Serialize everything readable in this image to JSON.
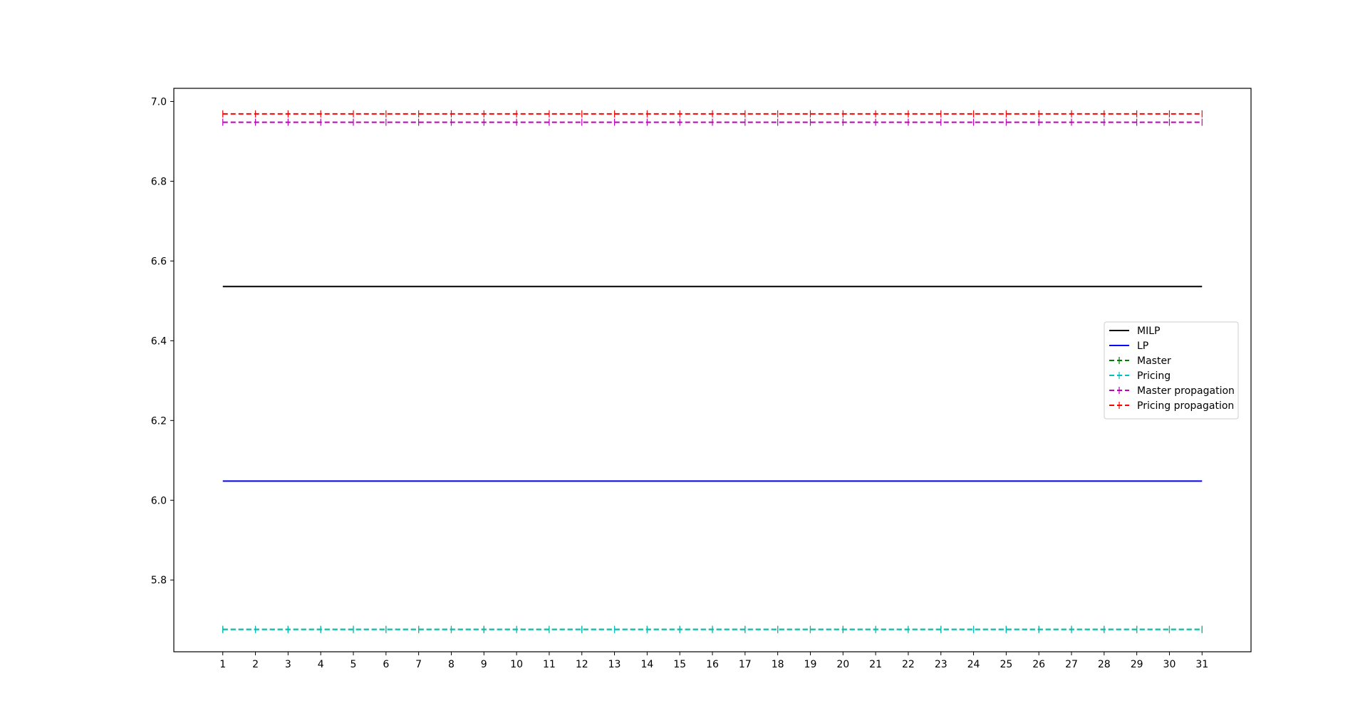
{
  "chart_data": {
    "type": "line",
    "title": "",
    "xlabel": "",
    "ylabel": "",
    "x": [
      1,
      2,
      3,
      4,
      5,
      6,
      7,
      8,
      9,
      10,
      11,
      12,
      13,
      14,
      15,
      16,
      17,
      18,
      19,
      20,
      21,
      22,
      23,
      24,
      25,
      26,
      27,
      28,
      29,
      30,
      31
    ],
    "xlim": [
      -0.5,
      32.5
    ],
    "ylim": [
      5.62,
      7.033
    ],
    "yticks": [
      5.8,
      6.0,
      6.2,
      6.4,
      6.6,
      6.8,
      7.0
    ],
    "ytick_labels": [
      "5.8",
      "6.0",
      "6.2",
      "6.4",
      "6.6",
      "6.8",
      "7.0"
    ],
    "xtick_labels": [
      "1",
      "2",
      "3",
      "4",
      "5",
      "6",
      "7",
      "8",
      "9",
      "10",
      "11",
      "12",
      "13",
      "14",
      "15",
      "16",
      "17",
      "18",
      "19",
      "20",
      "21",
      "22",
      "23",
      "24",
      "25",
      "26",
      "27",
      "28",
      "29",
      "30",
      "31"
    ],
    "grid": false,
    "legend_position": "center-right",
    "series": [
      {
        "name": "MILP",
        "color": "#000000",
        "style": "solid",
        "errorbars": false,
        "values": [
          6.536,
          6.536,
          6.536,
          6.536,
          6.536,
          6.536,
          6.536,
          6.536,
          6.536,
          6.536,
          6.536,
          6.536,
          6.536,
          6.536,
          6.536,
          6.536,
          6.536,
          6.536,
          6.536,
          6.536,
          6.536,
          6.536,
          6.536,
          6.536,
          6.536,
          6.536,
          6.536,
          6.536,
          6.536,
          6.536,
          6.536
        ]
      },
      {
        "name": "LP",
        "color": "#0000ff",
        "style": "solid",
        "errorbars": false,
        "values": [
          6.048,
          6.048,
          6.048,
          6.048,
          6.048,
          6.048,
          6.048,
          6.048,
          6.048,
          6.048,
          6.048,
          6.048,
          6.048,
          6.048,
          6.048,
          6.048,
          6.048,
          6.048,
          6.048,
          6.048,
          6.048,
          6.048,
          6.048,
          6.048,
          6.048,
          6.048,
          6.048,
          6.048,
          6.048,
          6.048,
          6.048
        ]
      },
      {
        "name": "Master",
        "color": "#008000",
        "style": "dashed",
        "errorbars": true,
        "values": [
          5.676,
          5.676,
          5.676,
          5.676,
          5.676,
          5.676,
          5.676,
          5.676,
          5.676,
          5.676,
          5.676,
          5.676,
          5.676,
          5.676,
          5.676,
          5.676,
          5.676,
          5.676,
          5.676,
          5.676,
          5.676,
          5.676,
          5.676,
          5.676,
          5.676,
          5.676,
          5.676,
          5.676,
          5.676,
          5.676,
          5.676
        ]
      },
      {
        "name": "Pricing",
        "color": "#00bfbf",
        "style": "dashed",
        "errorbars": true,
        "values": [
          5.676,
          5.676,
          5.676,
          5.676,
          5.676,
          5.676,
          5.676,
          5.676,
          5.676,
          5.676,
          5.676,
          5.676,
          5.676,
          5.676,
          5.676,
          5.676,
          5.676,
          5.676,
          5.676,
          5.676,
          5.676,
          5.676,
          5.676,
          5.676,
          5.676,
          5.676,
          5.676,
          5.676,
          5.676,
          5.676,
          5.676
        ]
      },
      {
        "name": "Master propagation",
        "color": "#bf00bf",
        "style": "dashed",
        "errorbars": true,
        "values": [
          6.948,
          6.948,
          6.948,
          6.948,
          6.948,
          6.948,
          6.948,
          6.948,
          6.948,
          6.948,
          6.948,
          6.948,
          6.948,
          6.948,
          6.948,
          6.948,
          6.948,
          6.948,
          6.948,
          6.948,
          6.948,
          6.948,
          6.948,
          6.948,
          6.948,
          6.948,
          6.948,
          6.948,
          6.948,
          6.948,
          6.948
        ]
      },
      {
        "name": "Pricing propagation",
        "color": "#ff0000",
        "style": "dashed",
        "errorbars": true,
        "values": [
          6.969,
          6.969,
          6.969,
          6.969,
          6.969,
          6.969,
          6.969,
          6.969,
          6.969,
          6.969,
          6.969,
          6.969,
          6.969,
          6.969,
          6.969,
          6.969,
          6.969,
          6.969,
          6.969,
          6.969,
          6.969,
          6.969,
          6.969,
          6.969,
          6.969,
          6.969,
          6.969,
          6.969,
          6.969,
          6.969,
          6.969
        ]
      }
    ]
  }
}
